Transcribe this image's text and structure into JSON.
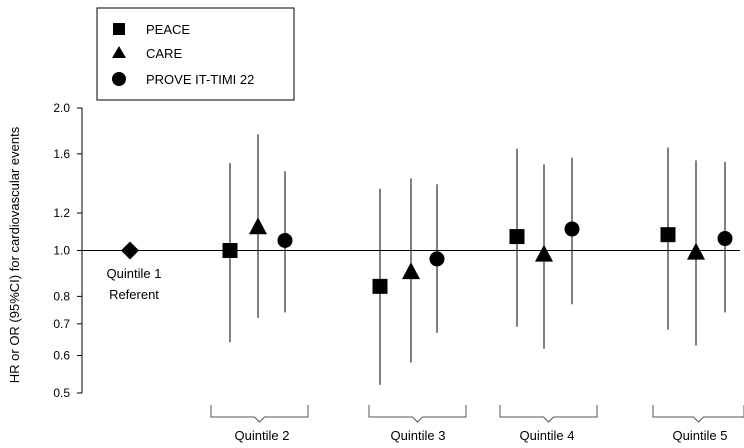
{
  "chart_data": {
    "type": "scatter",
    "title": "",
    "xlabel": "",
    "ylabel": "HR or OR (95%CI) for cardiovascular events",
    "y_scale": "log",
    "ylim": [
      0.5,
      2.0
    ],
    "yticks": [
      "0.5",
      "0.6",
      "0.7",
      "0.8",
      "1.0",
      "1.2",
      "1.6",
      "2.0"
    ],
    "reference_line": 1.0,
    "groups": [
      "Quintile 2",
      "Quintile 3",
      "Quintile 4",
      "Quintile 5"
    ],
    "referent": {
      "label_line1": "Quintile 1",
      "label_line2": "Referent",
      "value": 1.0,
      "marker": "diamond"
    },
    "legend_position": "top-left",
    "series": [
      {
        "name": "PEACE",
        "marker": "square",
        "points": [
          {
            "group": "Quintile 2",
            "est": 1.0,
            "lo": 0.64,
            "hi": 1.53
          },
          {
            "group": "Quintile 3",
            "est": 0.84,
            "lo": 0.52,
            "hi": 1.35
          },
          {
            "group": "Quintile 4",
            "est": 1.07,
            "lo": 0.69,
            "hi": 1.64
          },
          {
            "group": "Quintile 5",
            "est": 1.08,
            "lo": 0.68,
            "hi": 1.65
          }
        ]
      },
      {
        "name": "CARE",
        "marker": "triangle",
        "points": [
          {
            "group": "Quintile 2",
            "est": 1.12,
            "lo": 0.72,
            "hi": 1.76
          },
          {
            "group": "Quintile 3",
            "est": 0.9,
            "lo": 0.58,
            "hi": 1.42
          },
          {
            "group": "Quintile 4",
            "est": 0.98,
            "lo": 0.62,
            "hi": 1.52
          },
          {
            "group": "Quintile 5",
            "est": 0.99,
            "lo": 0.63,
            "hi": 1.55
          }
        ]
      },
      {
        "name": "PROVE IT-TIMI 22",
        "marker": "circle",
        "points": [
          {
            "group": "Quintile 2",
            "est": 1.05,
            "lo": 0.74,
            "hi": 1.47
          },
          {
            "group": "Quintile 3",
            "est": 0.96,
            "lo": 0.67,
            "hi": 1.38
          },
          {
            "group": "Quintile 4",
            "est": 1.11,
            "lo": 0.77,
            "hi": 1.57
          },
          {
            "group": "Quintile 5",
            "est": 1.06,
            "lo": 0.74,
            "hi": 1.54
          }
        ]
      }
    ]
  }
}
